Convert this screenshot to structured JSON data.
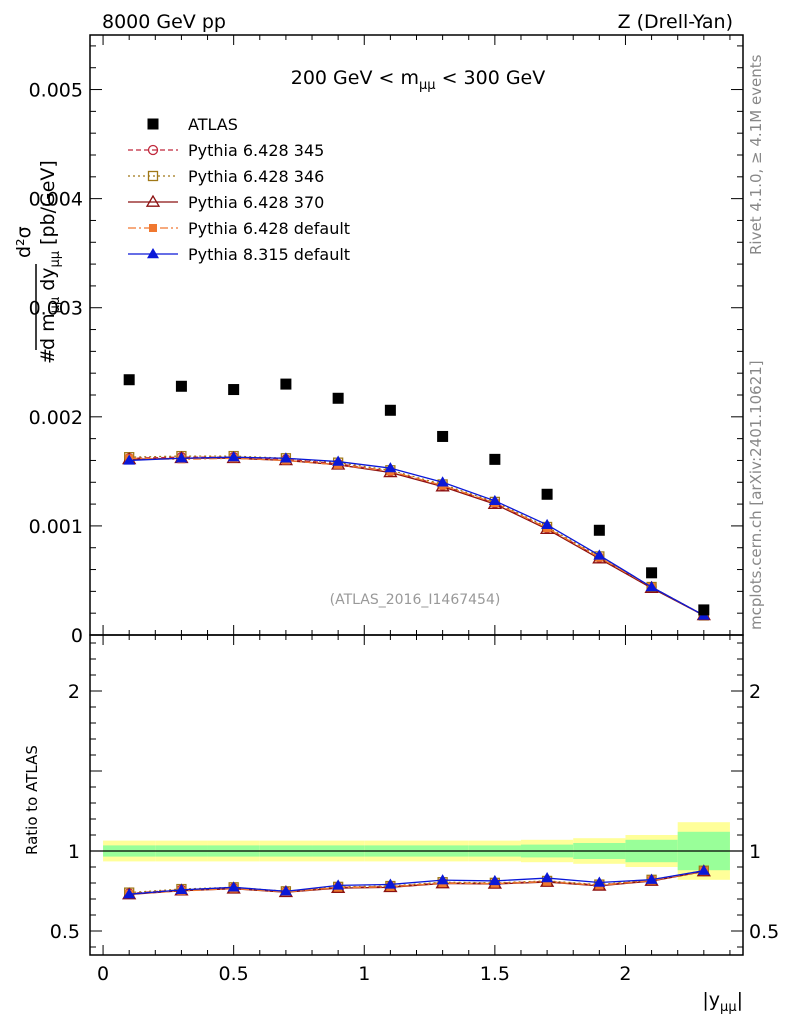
{
  "header": {
    "left": "8000 GeV pp",
    "right": "Z (Drell-Yan)"
  },
  "side_labels": {
    "rivet": "Rivet 4.1.0, ≥ 4.1M events",
    "mcplots": "mcplots.cern.ch [arXiv:2401.10621]"
  },
  "chart_data": {
    "type": "scatter",
    "title": "200 GeV < m_μμ < 300 GeV",
    "title_parts": {
      "pre": "200 GeV < m",
      "sub": "μμ",
      "post": " < 300 GeV"
    },
    "watermark": "(ATLAS_2016_I1467454)",
    "xlabel": "|y_μμ|",
    "xlabel_parts": {
      "pre": "|y",
      "sub": "μμ",
      "post": "|"
    },
    "ylabel": "d²σ / d m_μμ dy_μμ [pb/GeV]",
    "ylabel_parts": {
      "num": "d²σ",
      "den": "d m",
      "den_sub1": "μμ",
      "den_mid": " dy",
      "den_sub2": "μμ",
      "unit": "[pb/GeV]"
    },
    "ratio_ylabel": "Ratio to ATLAS",
    "xlim": [
      -0.05,
      2.45
    ],
    "ylim": [
      0,
      0.0055
    ],
    "ratio_ylim": [
      0.35,
      2.35
    ],
    "x_ticks": [
      {
        "v": 0,
        "label": "0"
      },
      {
        "v": 0.5,
        "label": "0.5"
      },
      {
        "v": 1,
        "label": "1"
      },
      {
        "v": 1.5,
        "label": "1.5"
      },
      {
        "v": 2,
        "label": "2"
      }
    ],
    "y_ticks": [
      {
        "v": 0,
        "label": "0"
      },
      {
        "v": 0.001,
        "label": "0.001"
      },
      {
        "v": 0.002,
        "label": "0.002"
      },
      {
        "v": 0.003,
        "label": "0.003"
      },
      {
        "v": 0.004,
        "label": "0.004"
      },
      {
        "v": 0.005,
        "label": "0.005"
      }
    ],
    "ratio_ticks": [
      {
        "v": 0.5,
        "label": "0.5"
      },
      {
        "v": 1,
        "label": "1"
      },
      {
        "v": 2,
        "label": "2"
      }
    ],
    "x": [
      0.1,
      0.3,
      0.5,
      0.7,
      0.9,
      1.1,
      1.3,
      1.5,
      1.7,
      1.9,
      2.1,
      2.3
    ],
    "bin_edges": [
      0.0,
      0.2,
      0.4,
      0.6,
      0.8,
      1.0,
      1.2,
      1.4,
      1.6,
      1.8,
      2.0,
      2.2,
      2.4
    ],
    "data": {
      "name": "ATLAS",
      "values": [
        0.00234,
        0.00228,
        0.00225,
        0.0023,
        0.00217,
        0.00206,
        0.00182,
        0.00161,
        0.00129,
        0.00096,
        0.00057,
        0.00023
      ]
    },
    "band_stat": [
      0.035,
      0.035,
      0.035,
      0.035,
      0.035,
      0.035,
      0.035,
      0.035,
      0.04,
      0.05,
      0.07,
      0.12
    ],
    "band_total": [
      0.065,
      0.065,
      0.065,
      0.065,
      0.065,
      0.065,
      0.065,
      0.065,
      0.07,
      0.08,
      0.1,
      0.18
    ],
    "series": [
      {
        "name": "Pythia 6.428 345",
        "color": "#c0283c",
        "marker": "circle-open",
        "dash": "5,3",
        "values": [
          0.00162,
          0.00163,
          0.00163,
          0.00161,
          0.00157,
          0.0015,
          0.00137,
          0.00121,
          0.00098,
          0.00071,
          0.00044,
          0.00018
        ],
        "ratio": [
          0.735,
          0.758,
          0.769,
          0.745,
          0.773,
          0.778,
          0.801,
          0.798,
          0.81,
          0.787,
          0.817,
          0.875
        ]
      },
      {
        "name": "Pythia 6.428 346",
        "color": "#a07818",
        "marker": "square-open",
        "dash": "2,3",
        "values": [
          0.00163,
          0.00164,
          0.00164,
          0.00162,
          0.00158,
          0.00151,
          0.00138,
          0.00122,
          0.00099,
          0.00072,
          0.00044,
          0.00018
        ],
        "ratio": [
          0.74,
          0.762,
          0.773,
          0.748,
          0.776,
          0.781,
          0.805,
          0.801,
          0.813,
          0.79,
          0.82,
          0.877
        ]
      },
      {
        "name": "Pythia 6.428 370",
        "color": "#8b1010",
        "marker": "triangle-open",
        "dash": "",
        "values": [
          0.00161,
          0.00162,
          0.00162,
          0.0016,
          0.00156,
          0.00149,
          0.00136,
          0.0012,
          0.00097,
          0.0007,
          0.00043,
          0.00018
        ],
        "ratio": [
          0.728,
          0.752,
          0.764,
          0.742,
          0.768,
          0.773,
          0.797,
          0.794,
          0.806,
          0.782,
          0.812,
          0.872
        ]
      },
      {
        "name": "Pythia 6.428 default",
        "color": "#f07830",
        "marker": "square-filled",
        "dash": "8,3,2,3",
        "values": [
          0.00162,
          0.00161,
          0.00162,
          0.0016,
          0.00156,
          0.0015,
          0.00137,
          0.00121,
          0.00098,
          0.00071,
          0.00044,
          0.00018
        ],
        "ratio": [
          0.732,
          0.75,
          0.765,
          0.744,
          0.771,
          0.776,
          0.799,
          0.796,
          0.808,
          0.785,
          0.815,
          0.874
        ]
      },
      {
        "name": "Pythia 8.315 default",
        "color": "#0a18d8",
        "marker": "triangle-filled",
        "dash": "",
        "values": [
          0.0016,
          0.00162,
          0.00163,
          0.00162,
          0.00159,
          0.00153,
          0.0014,
          0.00123,
          0.00101,
          0.00073,
          0.00044,
          0.00018
        ],
        "ratio": [
          0.73,
          0.757,
          0.773,
          0.748,
          0.785,
          0.791,
          0.818,
          0.813,
          0.831,
          0.803,
          0.821,
          0.877
        ]
      }
    ]
  }
}
